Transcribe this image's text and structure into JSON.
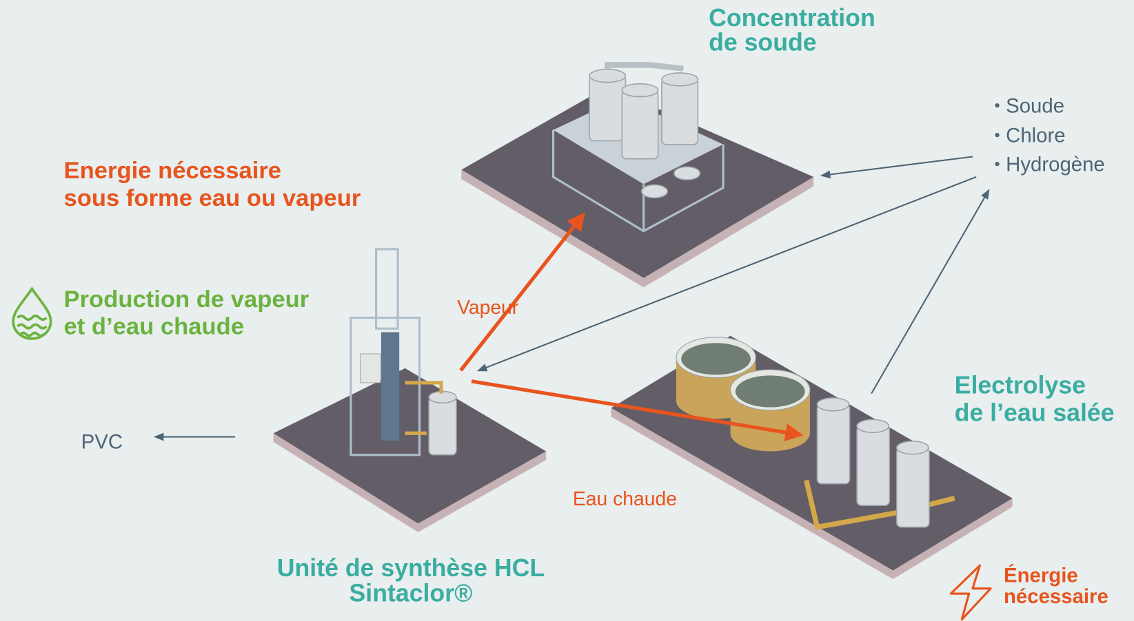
{
  "units": [
    {
      "label": [
        "Concentration",
        "de soude"
      ]
    },
    {
      "label": [
        "Electrolyse",
        "de l’eau salée"
      ]
    },
    {
      "label": [
        "Unité de synthèse HCL",
        "Sintaclor®"
      ]
    }
  ],
  "products": [
    "Soude",
    "Chlore",
    "Hydrogène"
  ],
  "energy_note": [
    "Energie nécessaire",
    "sous forme eau ou vapeur"
  ],
  "steam_production": [
    "Production de vapeur",
    "et d’eau chaude"
  ],
  "flows": [
    "Vapeur",
    "Eau chaude"
  ],
  "output": "PVC",
  "power_note": [
    "Énergie",
    "nécessaire"
  ]
}
